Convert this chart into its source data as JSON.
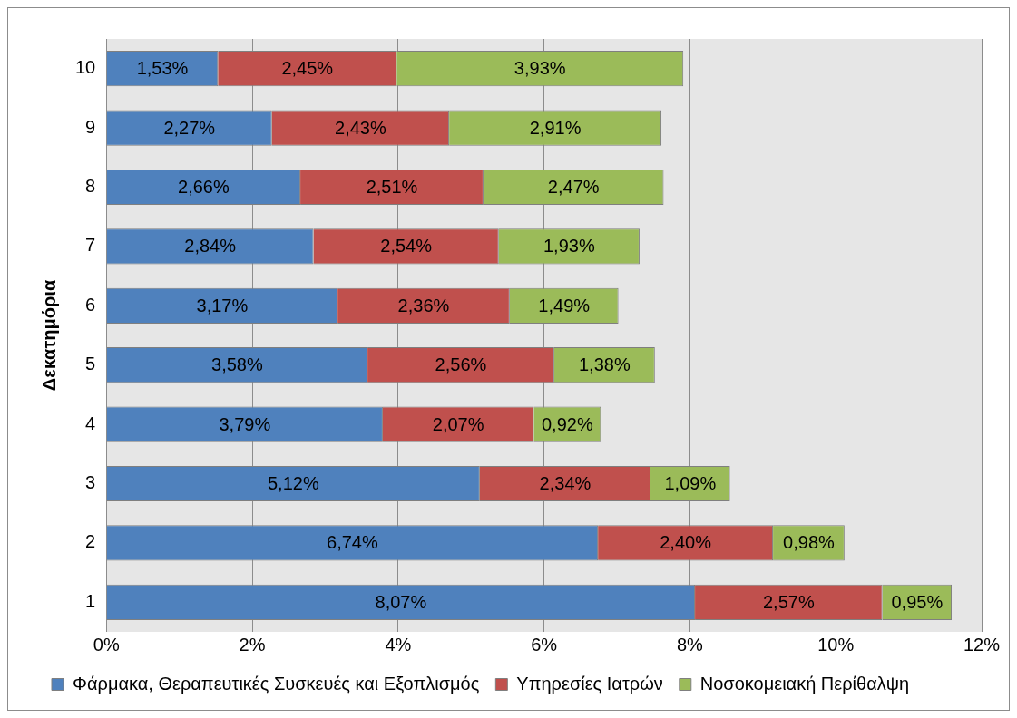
{
  "chart_data": {
    "type": "bar",
    "orientation": "horizontal",
    "stacked": true,
    "ylabel": "Δεκατημόρια",
    "categories": [
      "10",
      "9",
      "8",
      "7",
      "6",
      "5",
      "4",
      "3",
      "2",
      "1"
    ],
    "series": [
      {
        "name": "Φάρμακα, Θεραπευτικές Συσκευές και Εξοπλισμός",
        "color": "#4f81bd",
        "values": [
          1.53,
          2.27,
          2.66,
          2.84,
          3.17,
          3.58,
          3.79,
          5.12,
          6.74,
          8.07
        ],
        "value_labels": [
          "1,53%",
          "2,27%",
          "2,66%",
          "2,84%",
          "3,17%",
          "3,58%",
          "3,79%",
          "5,12%",
          "6,74%",
          "8,07%"
        ]
      },
      {
        "name": "Υπηρεσίες Ιατρών",
        "color": "#c0504d",
        "values": [
          2.45,
          2.43,
          2.51,
          2.54,
          2.36,
          2.56,
          2.07,
          2.34,
          2.4,
          2.57
        ],
        "value_labels": [
          "2,45%",
          "2,43%",
          "2,51%",
          "2,54%",
          "2,36%",
          "2,56%",
          "2,07%",
          "2,34%",
          "2,40%",
          "2,57%"
        ]
      },
      {
        "name": "Νοσοκομειακή Περίθαλψη",
        "color": "#9bbb59",
        "values": [
          3.93,
          2.91,
          2.47,
          1.93,
          1.49,
          1.38,
          0.92,
          1.09,
          0.98,
          0.95
        ],
        "value_labels": [
          "3,93%",
          "2,91%",
          "2,47%",
          "1,93%",
          "1,49%",
          "1,38%",
          "0,92%",
          "1,09%",
          "0,98%",
          "0,95%"
        ]
      }
    ],
    "xlim": [
      0,
      12
    ],
    "xticks": [
      {
        "value": 0,
        "label": "0%"
      },
      {
        "value": 2,
        "label": "2%"
      },
      {
        "value": 4,
        "label": "4%"
      },
      {
        "value": 6,
        "label": "6%"
      },
      {
        "value": 8,
        "label": "8%"
      },
      {
        "value": 10,
        "label": "10%"
      },
      {
        "value": 12,
        "label": "12%"
      }
    ],
    "grid": "x",
    "legend": "bottom"
  }
}
